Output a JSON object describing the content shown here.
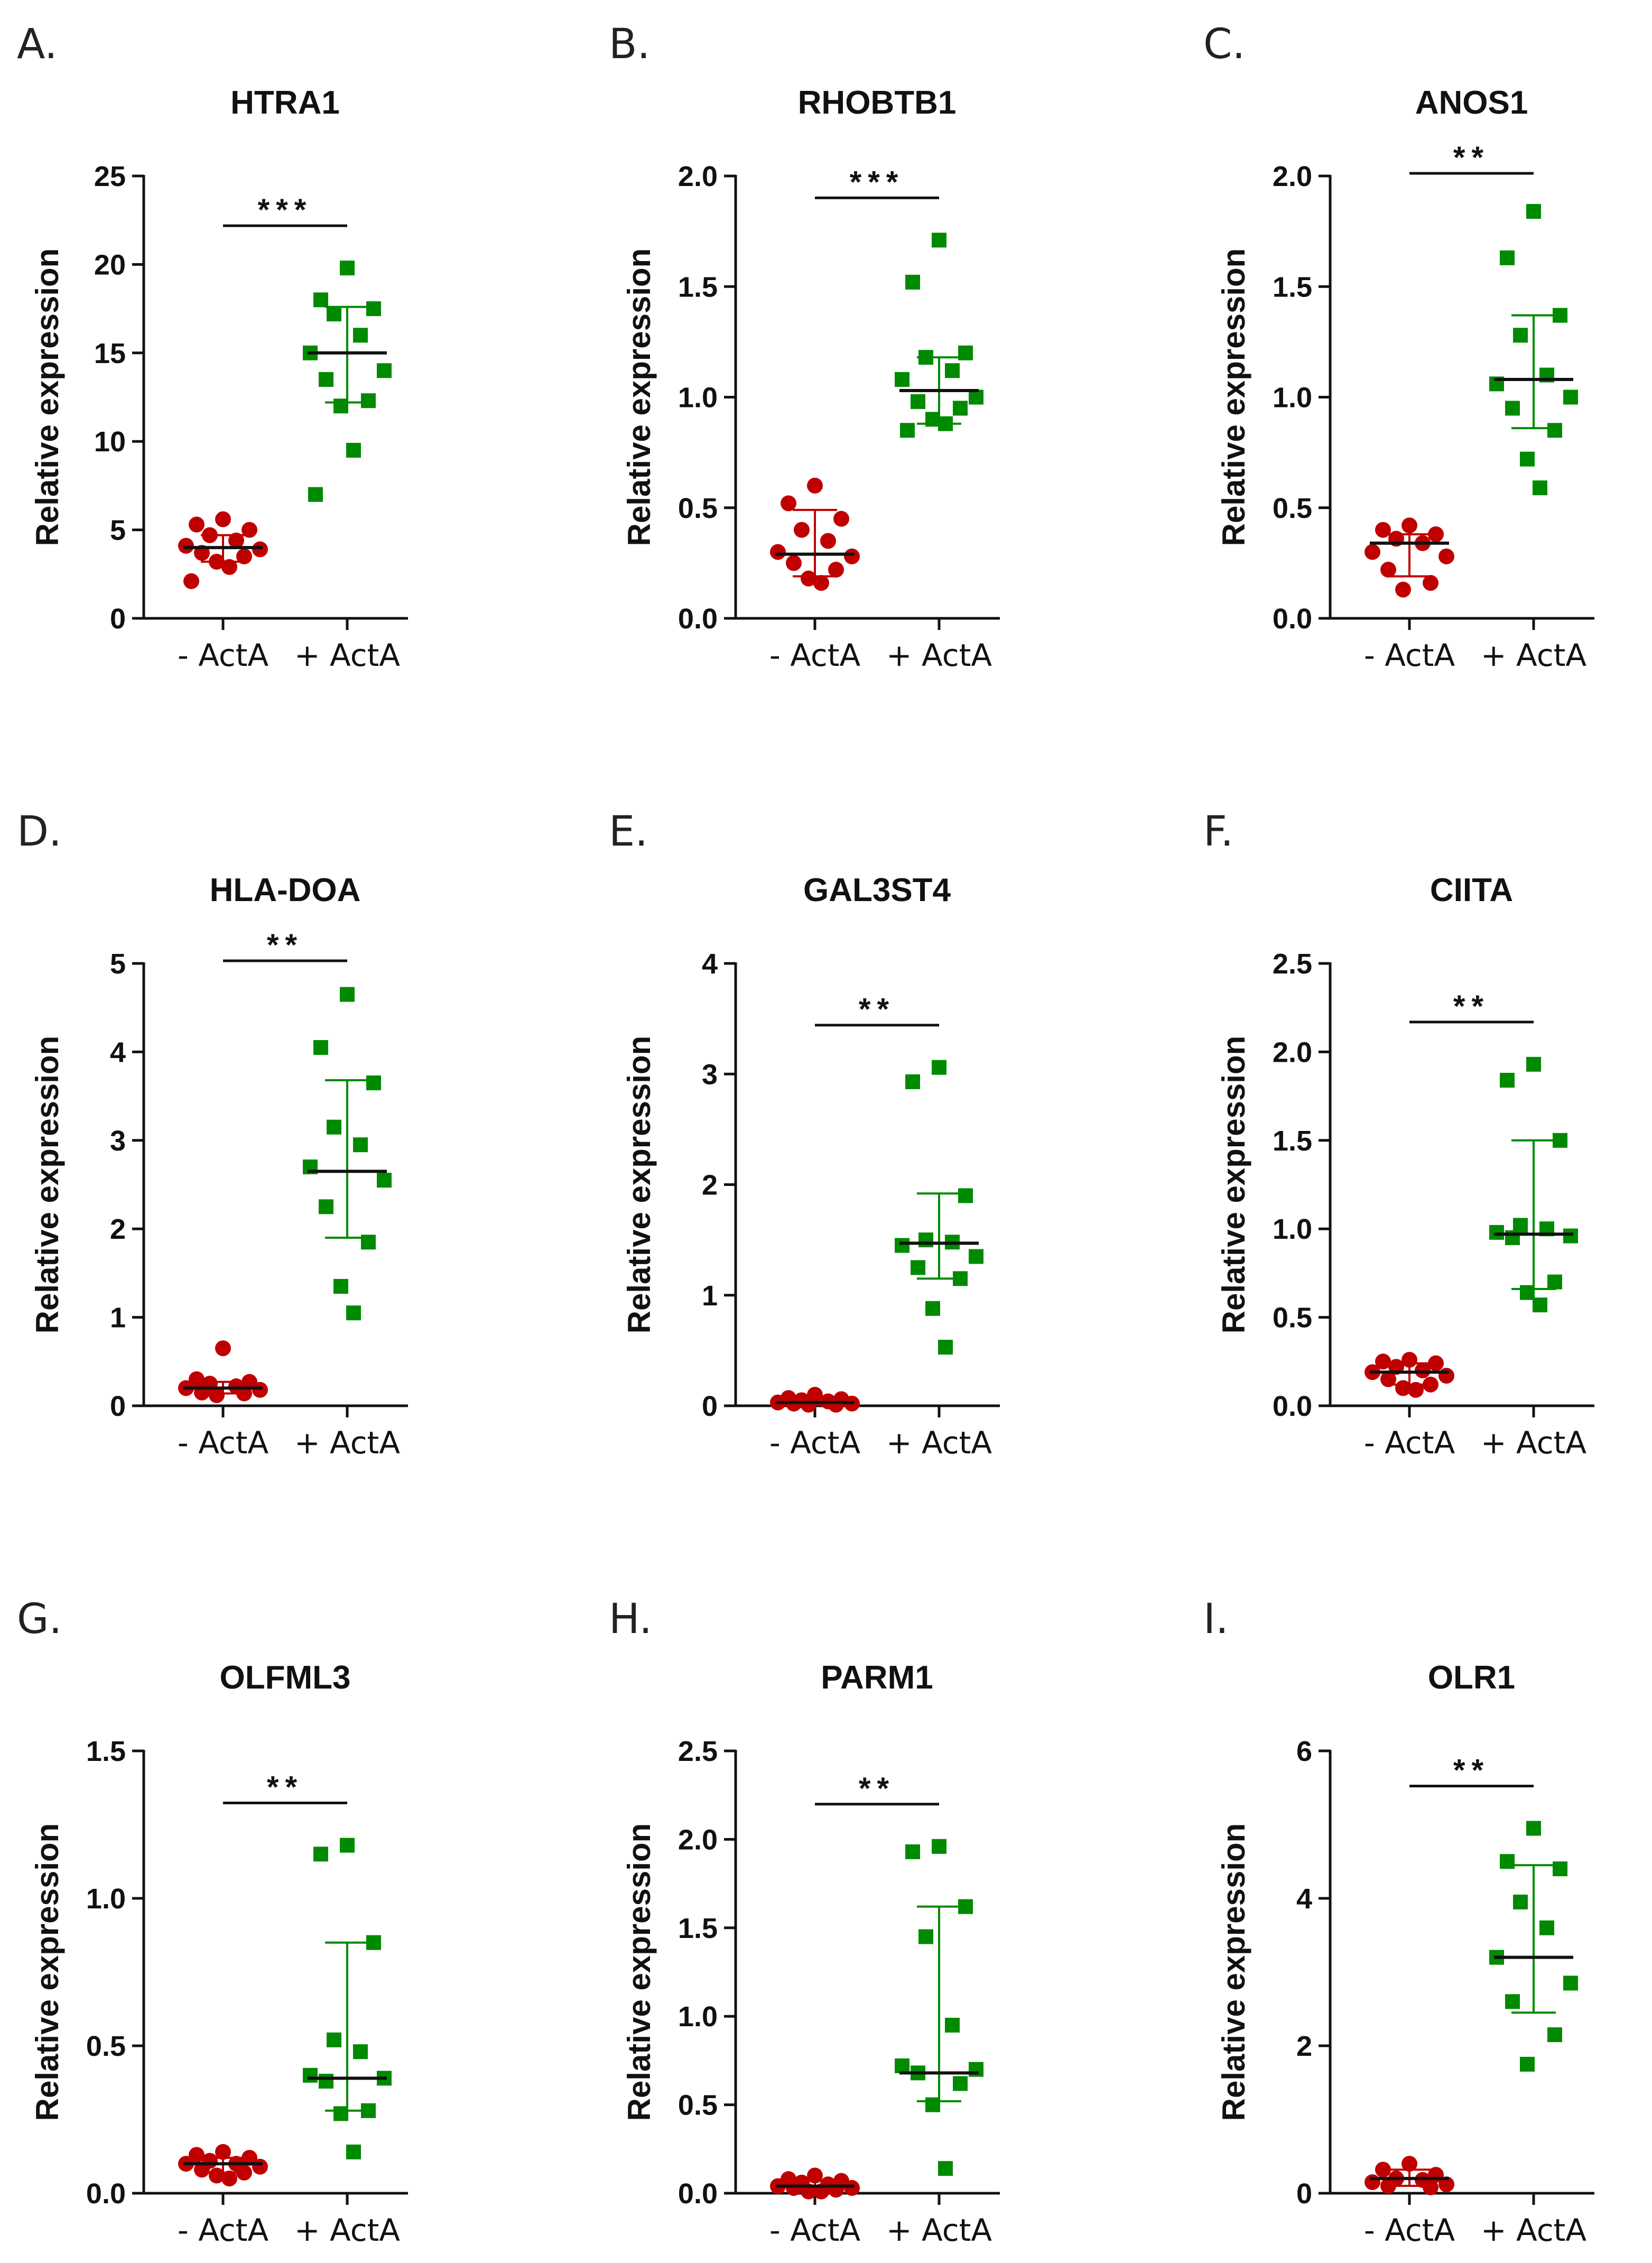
{
  "chart_data": [
    {
      "type": "scatter",
      "panel": "A.",
      "title": "HTRA1",
      "ylabel": "Relative expression",
      "xlabel": "",
      "ylim": [
        0,
        25
      ],
      "yticks": [
        0,
        5,
        10,
        15,
        20,
        25
      ],
      "ytick_labels": [
        "0",
        "5",
        "10",
        "15",
        "20",
        "25"
      ],
      "categories": [
        "- ActA",
        "+ ActA"
      ],
      "series": [
        {
          "name": "- ActA",
          "color": "#c00000",
          "marker": "circle",
          "values": [
            5.6,
            5.3,
            5.0,
            4.7,
            4.4,
            4.1,
            3.9,
            3.7,
            3.5,
            3.2,
            2.9,
            2.1
          ],
          "median": 4.0,
          "err_low": 3.2,
          "err_high": 4.7
        },
        {
          "name": "+ ActA",
          "color": "#008a00",
          "marker": "square",
          "values": [
            19.8,
            18.0,
            17.5,
            17.2,
            16.0,
            15.0,
            14.0,
            13.5,
            12.3,
            12.0,
            9.5,
            7.0
          ],
          "median": 15.0,
          "err_low": 12.2,
          "err_high": 17.6
        }
      ],
      "significance": "***"
    },
    {
      "type": "scatter",
      "panel": "B.",
      "title": "RHOBTB1",
      "ylabel": "Relative expression",
      "xlabel": "",
      "ylim": [
        0,
        2.0
      ],
      "yticks": [
        0,
        0.5,
        1.0,
        1.5,
        2.0
      ],
      "ytick_labels": [
        "0.0",
        "0.5",
        "1.0",
        "1.5",
        "2.0"
      ],
      "categories": [
        "- ActA",
        "+ ActA"
      ],
      "series": [
        {
          "name": "- ActA",
          "color": "#c00000",
          "marker": "circle",
          "values": [
            0.6,
            0.52,
            0.45,
            0.4,
            0.35,
            0.3,
            0.28,
            0.25,
            0.22,
            0.18,
            0.16
          ],
          "median": 0.29,
          "err_low": 0.19,
          "err_high": 0.49
        },
        {
          "name": "+ ActA",
          "color": "#008a00",
          "marker": "square",
          "values": [
            1.71,
            1.52,
            1.2,
            1.18,
            1.12,
            1.08,
            1.0,
            0.98,
            0.95,
            0.9,
            0.88,
            0.85
          ],
          "median": 1.03,
          "err_low": 0.88,
          "err_high": 1.18
        }
      ],
      "significance": "***"
    },
    {
      "type": "scatter",
      "panel": "C.",
      "title": "ANOS1",
      "ylabel": "Relative expression",
      "xlabel": "",
      "ylim": [
        0,
        2.0
      ],
      "yticks": [
        0,
        0.5,
        1.0,
        1.5,
        2.0
      ],
      "ytick_labels": [
        "0.0",
        "0.5",
        "1.0",
        "1.5",
        "2.0"
      ],
      "categories": [
        "- ActA",
        "+ ActA"
      ],
      "series": [
        {
          "name": "- ActA",
          "color": "#c00000",
          "marker": "circle",
          "values": [
            0.42,
            0.4,
            0.38,
            0.36,
            0.34,
            0.3,
            0.28,
            0.22,
            0.16,
            0.13
          ],
          "median": 0.34,
          "err_low": 0.19,
          "err_high": 0.38
        },
        {
          "name": "+ ActA",
          "color": "#008a00",
          "marker": "square",
          "values": [
            1.84,
            1.63,
            1.37,
            1.28,
            1.1,
            1.06,
            1.0,
            0.95,
            0.85,
            0.72,
            0.59
          ],
          "median": 1.08,
          "err_low": 0.86,
          "err_high": 1.37
        }
      ],
      "significance": "**"
    },
    {
      "type": "scatter",
      "panel": "D.",
      "title": "HLA-DOA",
      "ylabel": "Relative expression",
      "xlabel": "",
      "ylim": [
        0,
        5
      ],
      "yticks": [
        0,
        1,
        2,
        3,
        4,
        5
      ],
      "ytick_labels": [
        "0",
        "1",
        "2",
        "3",
        "4",
        "5"
      ],
      "categories": [
        "- ActA",
        "+ ActA"
      ],
      "series": [
        {
          "name": "- ActA",
          "color": "#c00000",
          "marker": "circle",
          "values": [
            0.65,
            0.3,
            0.27,
            0.25,
            0.22,
            0.2,
            0.18,
            0.15,
            0.14,
            0.12
          ],
          "median": 0.2,
          "err_low": 0.14,
          "err_high": 0.27
        },
        {
          "name": "+ ActA",
          "color": "#008a00",
          "marker": "square",
          "values": [
            4.65,
            4.05,
            3.65,
            3.15,
            2.95,
            2.7,
            2.55,
            2.25,
            1.85,
            1.35,
            1.05
          ],
          "median": 2.65,
          "err_low": 1.9,
          "err_high": 3.68
        }
      ],
      "significance": "**"
    },
    {
      "type": "scatter",
      "panel": "E.",
      "title": "GAL3ST4",
      "ylabel": "Relative expression",
      "xlabel": "",
      "ylim": [
        0,
        4
      ],
      "yticks": [
        0,
        1,
        2,
        3,
        4
      ],
      "ytick_labels": [
        "0",
        "1",
        "2",
        "3",
        "4"
      ],
      "categories": [
        "- ActA",
        "+ ActA"
      ],
      "series": [
        {
          "name": "- ActA",
          "color": "#c00000",
          "marker": "circle",
          "values": [
            0.1,
            0.07,
            0.06,
            0.05,
            0.04,
            0.03,
            0.02,
            0.02,
            0.01,
            0.01
          ],
          "median": 0.03,
          "err_low": 0.01,
          "err_high": 0.06
        },
        {
          "name": "+ ActA",
          "color": "#008a00",
          "marker": "square",
          "values": [
            3.06,
            2.93,
            1.9,
            1.5,
            1.48,
            1.45,
            1.35,
            1.25,
            1.15,
            0.88,
            0.53
          ],
          "median": 1.47,
          "err_low": 1.15,
          "err_high": 1.92
        }
      ],
      "significance": "**"
    },
    {
      "type": "scatter",
      "panel": "F.",
      "title": "CIITA",
      "ylabel": "Relative expression",
      "xlabel": "",
      "ylim": [
        0,
        2.5
      ],
      "yticks": [
        0,
        0.5,
        1.0,
        1.5,
        2.0,
        2.5
      ],
      "ytick_labels": [
        "0.0",
        "0.5",
        "1.0",
        "1.5",
        "2.0",
        "2.5"
      ],
      "categories": [
        "- ActA",
        "+ ActA"
      ],
      "series": [
        {
          "name": "- ActA",
          "color": "#c00000",
          "marker": "circle",
          "values": [
            0.26,
            0.25,
            0.24,
            0.22,
            0.2,
            0.19,
            0.17,
            0.15,
            0.12,
            0.1,
            0.09
          ],
          "median": 0.19,
          "err_low": 0.12,
          "err_high": 0.24
        },
        {
          "name": "+ ActA",
          "color": "#008a00",
          "marker": "square",
          "values": [
            1.93,
            1.84,
            1.5,
            1.02,
            1.0,
            0.98,
            0.96,
            0.95,
            0.7,
            0.64,
            0.57
          ],
          "median": 0.97,
          "err_low": 0.66,
          "err_high": 1.5
        }
      ],
      "significance": "**"
    },
    {
      "type": "scatter",
      "panel": "G.",
      "title": "OLFML3",
      "ylabel": "Relative expression",
      "xlabel": "",
      "ylim": [
        0,
        1.5
      ],
      "yticks": [
        0,
        0.5,
        1.0,
        1.5
      ],
      "ytick_labels": [
        "0.0",
        "0.5",
        "1.0",
        "1.5"
      ],
      "categories": [
        "- ActA",
        "+ ActA"
      ],
      "series": [
        {
          "name": "- ActA",
          "color": "#c00000",
          "marker": "circle",
          "values": [
            0.14,
            0.13,
            0.12,
            0.11,
            0.1,
            0.1,
            0.09,
            0.08,
            0.07,
            0.06,
            0.05
          ],
          "median": 0.1,
          "err_low": 0.07,
          "err_high": 0.12
        },
        {
          "name": "+ ActA",
          "color": "#008a00",
          "marker": "square",
          "values": [
            1.18,
            1.15,
            0.85,
            0.52,
            0.48,
            0.4,
            0.39,
            0.38,
            0.28,
            0.27,
            0.14
          ],
          "median": 0.39,
          "err_low": 0.28,
          "err_high": 0.85
        }
      ],
      "significance": "**"
    },
    {
      "type": "scatter",
      "panel": "H.",
      "title": "PARM1",
      "ylabel": "Relative expression",
      "xlabel": "",
      "ylim": [
        0,
        2.5
      ],
      "yticks": [
        0,
        0.5,
        1.0,
        1.5,
        2.0,
        2.5
      ],
      "ytick_labels": [
        "0.0",
        "0.5",
        "1.0",
        "1.5",
        "2.0",
        "2.5"
      ],
      "categories": [
        "- ActA",
        "+ ActA"
      ],
      "series": [
        {
          "name": "- ActA",
          "color": "#c00000",
          "marker": "circle",
          "values": [
            0.1,
            0.08,
            0.07,
            0.06,
            0.05,
            0.04,
            0.03,
            0.03,
            0.02,
            0.01,
            0.01
          ],
          "median": 0.04,
          "err_low": 0.02,
          "err_high": 0.07
        },
        {
          "name": "+ ActA",
          "color": "#008a00",
          "marker": "square",
          "values": [
            1.96,
            1.93,
            1.62,
            1.45,
            0.95,
            0.72,
            0.7,
            0.68,
            0.62,
            0.5,
            0.14
          ],
          "median": 0.68,
          "err_low": 0.52,
          "err_high": 1.62
        }
      ],
      "significance": "**"
    },
    {
      "type": "scatter",
      "panel": "I.",
      "title": "OLR1",
      "ylabel": "Relative expression",
      "xlabel": "",
      "ylim": [
        0,
        6
      ],
      "yticks": [
        0,
        2,
        4,
        6
      ],
      "ytick_labels": [
        "0",
        "2",
        "4",
        "6"
      ],
      "categories": [
        "- ActA",
        "+ ActA"
      ],
      "series": [
        {
          "name": "- ActA",
          "color": "#c00000",
          "marker": "circle",
          "values": [
            0.4,
            0.32,
            0.25,
            0.2,
            0.18,
            0.15,
            0.12,
            0.1,
            0.08
          ],
          "median": 0.2,
          "err_low": 0.1,
          "err_high": 0.32
        },
        {
          "name": "+ ActA",
          "color": "#008a00",
          "marker": "square",
          "values": [
            4.95,
            4.5,
            4.4,
            3.95,
            3.6,
            3.2,
            2.85,
            2.6,
            2.15,
            1.75
          ],
          "median": 3.2,
          "err_low": 2.45,
          "err_high": 4.45
        }
      ],
      "significance": "**"
    }
  ]
}
